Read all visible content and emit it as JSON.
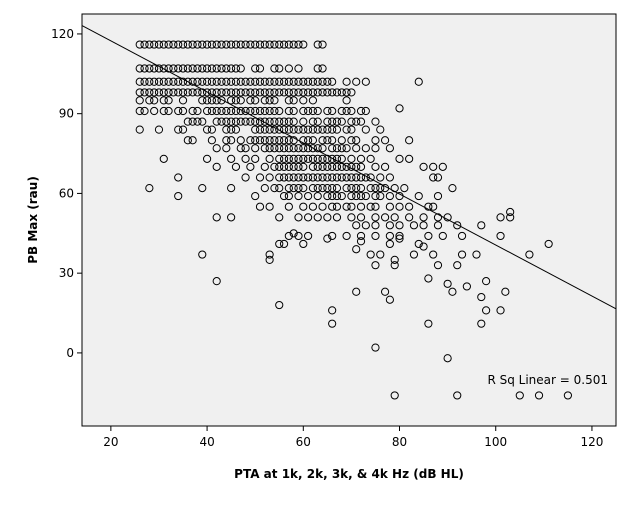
{
  "chart_data": {
    "type": "scatter",
    "title": "",
    "xlabel": "PTA at 1k, 2k, 3k, & 4k Hz (dB HL)",
    "ylabel": "PB Max (rau)",
    "xlim": [
      14,
      125
    ],
    "ylim": [
      -27.5,
      127.5
    ],
    "xticks": [
      20,
      40,
      60,
      80,
      100,
      120
    ],
    "yticks": [
      0,
      30,
      60,
      90,
      120
    ],
    "grid": false,
    "fit_line": {
      "slope": -0.96,
      "intercept": 136.6,
      "label": "R Sq Linear = 0.501"
    },
    "rows": [
      {
        "y": 116,
        "x": [
          26,
          27,
          28,
          29,
          30,
          31,
          32,
          33,
          34,
          35,
          36,
          37,
          38,
          39,
          40,
          41,
          42,
          43,
          44,
          45,
          46,
          47,
          48,
          49,
          50,
          51,
          52,
          53,
          54,
          55,
          56,
          57,
          58,
          59,
          60,
          63,
          64
        ]
      },
      {
        "y": 107,
        "x": [
          26,
          27,
          28,
          29,
          30,
          31,
          32,
          33,
          34,
          35,
          36,
          37,
          38,
          39,
          40,
          41,
          42,
          43,
          44,
          45,
          46,
          47,
          50,
          51,
          54,
          55,
          57,
          59,
          63,
          64
        ]
      },
      {
        "y": 102,
        "x": [
          26,
          27,
          28,
          29,
          30,
          31,
          32,
          33,
          34,
          35,
          36,
          37,
          38,
          39,
          40,
          41,
          42,
          43,
          44,
          45,
          46,
          47,
          48,
          49,
          50,
          51,
          52,
          53,
          54,
          55,
          56,
          57,
          58,
          59,
          60,
          61,
          62,
          63,
          64,
          65,
          66,
          69,
          71,
          73
        ]
      },
      {
        "y": 98,
        "x": [
          26,
          27,
          28,
          29,
          30,
          31,
          32,
          33,
          34,
          35,
          36,
          37,
          38,
          39,
          40,
          41,
          42,
          43,
          44,
          45,
          46,
          47,
          48,
          49,
          50,
          51,
          52,
          53,
          54,
          55,
          56,
          57,
          58,
          59,
          60,
          61,
          62,
          63,
          64,
          65,
          66,
          67,
          68,
          69,
          70
        ]
      },
      {
        "y": 95,
        "x": [
          26,
          28,
          29,
          31,
          32,
          35,
          39,
          40,
          41,
          42,
          43,
          45,
          46,
          47,
          49,
          50,
          52,
          53,
          54,
          57,
          58,
          60,
          62,
          69
        ]
      },
      {
        "y": 91,
        "x": [
          26,
          27,
          29,
          31,
          32,
          34,
          35,
          37,
          38,
          40,
          41,
          42,
          43,
          44,
          45,
          46,
          47,
          48,
          49,
          50,
          51,
          52,
          53,
          54,
          55,
          57,
          58,
          60,
          61,
          62,
          63,
          65,
          66,
          68,
          69,
          70,
          72,
          73
        ]
      },
      {
        "y": 87,
        "x": [
          36,
          37,
          38,
          39,
          42,
          43,
          44,
          45,
          46,
          47,
          48,
          49,
          50,
          51,
          52,
          53,
          54,
          55,
          56,
          57,
          58,
          60,
          62,
          63,
          65,
          66,
          67,
          68,
          70,
          71,
          72,
          75
        ]
      },
      {
        "y": 84,
        "x": [
          26,
          30,
          34,
          35,
          40,
          41,
          44,
          45,
          46,
          50,
          51,
          52,
          53,
          54,
          55,
          56,
          57,
          58,
          59,
          60,
          61,
          62,
          63,
          64,
          65,
          66,
          67,
          69,
          70,
          73,
          76
        ]
      },
      {
        "y": 80,
        "x": [
          36,
          37,
          41,
          44,
          45,
          47,
          49,
          50,
          51,
          52,
          53,
          54,
          55,
          56,
          57,
          58,
          60,
          61,
          62,
          64,
          65,
          66,
          68,
          70,
          71,
          75,
          77
        ]
      },
      {
        "y": 77,
        "x": [
          42,
          44,
          47,
          48,
          50,
          52,
          53,
          54,
          55,
          56,
          57,
          58,
          59,
          60,
          61,
          62,
          63,
          64,
          66,
          67,
          68,
          69,
          71,
          73,
          75,
          78
        ]
      },
      {
        "y": 73,
        "x": [
          31,
          40,
          45,
          48,
          50,
          53,
          55,
          56,
          57,
          58,
          59,
          60,
          61,
          62,
          63,
          64,
          65,
          66,
          67,
          68,
          70,
          72,
          74,
          80,
          82
        ]
      },
      {
        "y": 70,
        "x": [
          42,
          46,
          49,
          52,
          54,
          55,
          56,
          57,
          58,
          59,
          60,
          62,
          63,
          64,
          65,
          66,
          67,
          68,
          69,
          70,
          71,
          72,
          75,
          77,
          87
        ]
      },
      {
        "y": 66,
        "x": [
          34,
          48,
          51,
          53,
          55,
          56,
          57,
          58,
          59,
          60,
          61,
          62,
          63,
          64,
          65,
          66,
          67,
          68,
          69,
          70,
          71,
          72,
          73,
          74,
          76,
          78,
          87
        ]
      },
      {
        "y": 62,
        "x": [
          28,
          39,
          45,
          52,
          54,
          55,
          57,
          58,
          59,
          60,
          62,
          63,
          64,
          65,
          66,
          67,
          69,
          70,
          71,
          72,
          74,
          75,
          76,
          77,
          79,
          81,
          91
        ]
      },
      {
        "y": 59,
        "x": [
          34,
          50,
          56,
          57,
          59,
          61,
          63,
          65,
          66,
          67,
          68,
          70,
          71,
          72,
          73,
          75,
          76,
          78,
          80,
          84,
          88
        ]
      },
      {
        "y": 55,
        "x": [
          51,
          53,
          57,
          60,
          62,
          64,
          66,
          67,
          69,
          70,
          72,
          74,
          75,
          78,
          80,
          82,
          86,
          87
        ]
      },
      {
        "y": 51,
        "x": [
          42,
          45,
          55,
          59,
          61,
          63,
          65,
          67,
          70,
          72,
          75,
          77,
          79,
          82,
          85,
          88,
          90,
          101
        ]
      },
      {
        "y": 48,
        "x": [
          71,
          73,
          75,
          78,
          80,
          83,
          85,
          88,
          92,
          97
        ]
      },
      {
        "y": 44,
        "x": [
          57,
          59,
          61,
          66,
          69,
          72,
          75,
          78,
          80,
          86,
          89,
          93,
          101
        ]
      }
    ],
    "points": [
      [
        39,
        37
      ],
      [
        42,
        27
      ],
      [
        53,
        37
      ],
      [
        53,
        35
      ],
      [
        55,
        41
      ],
      [
        56,
        41
      ],
      [
        58,
        45
      ],
      [
        60,
        41
      ],
      [
        65,
        43
      ],
      [
        71,
        39
      ],
      [
        72,
        42
      ],
      [
        74,
        37
      ],
      [
        75,
        33
      ],
      [
        76,
        37
      ],
      [
        78,
        41
      ],
      [
        79,
        35
      ],
      [
        79,
        33
      ],
      [
        80,
        43
      ],
      [
        83,
        37
      ],
      [
        84,
        41
      ],
      [
        85,
        40
      ],
      [
        86,
        28
      ],
      [
        87,
        37
      ],
      [
        88,
        33
      ],
      [
        90,
        26
      ],
      [
        91,
        23
      ],
      [
        92,
        33
      ],
      [
        93,
        37
      ],
      [
        94,
        25
      ],
      [
        96,
        37
      ],
      [
        97,
        21
      ],
      [
        98,
        27
      ],
      [
        55,
        18
      ],
      [
        66,
        16
      ],
      [
        66,
        11
      ],
      [
        71,
        23
      ],
      [
        75,
        2
      ],
      [
        77,
        23
      ],
      [
        78,
        20
      ],
      [
        86,
        11
      ],
      [
        90,
        -2
      ],
      [
        97,
        11
      ],
      [
        98,
        16
      ],
      [
        101,
        16
      ],
      [
        102,
        23
      ],
      [
        107,
        37
      ],
      [
        111,
        41
      ],
      [
        103,
        53
      ],
      [
        103,
        51
      ],
      [
        79,
        -16
      ],
      [
        92,
        -16
      ],
      [
        105,
        -16
      ],
      [
        109,
        -16
      ],
      [
        115,
        -16
      ],
      [
        88,
        66
      ],
      [
        89,
        70
      ],
      [
        84,
        102
      ],
      [
        80,
        92
      ],
      [
        82,
        80
      ],
      [
        85,
        70
      ]
    ]
  }
}
